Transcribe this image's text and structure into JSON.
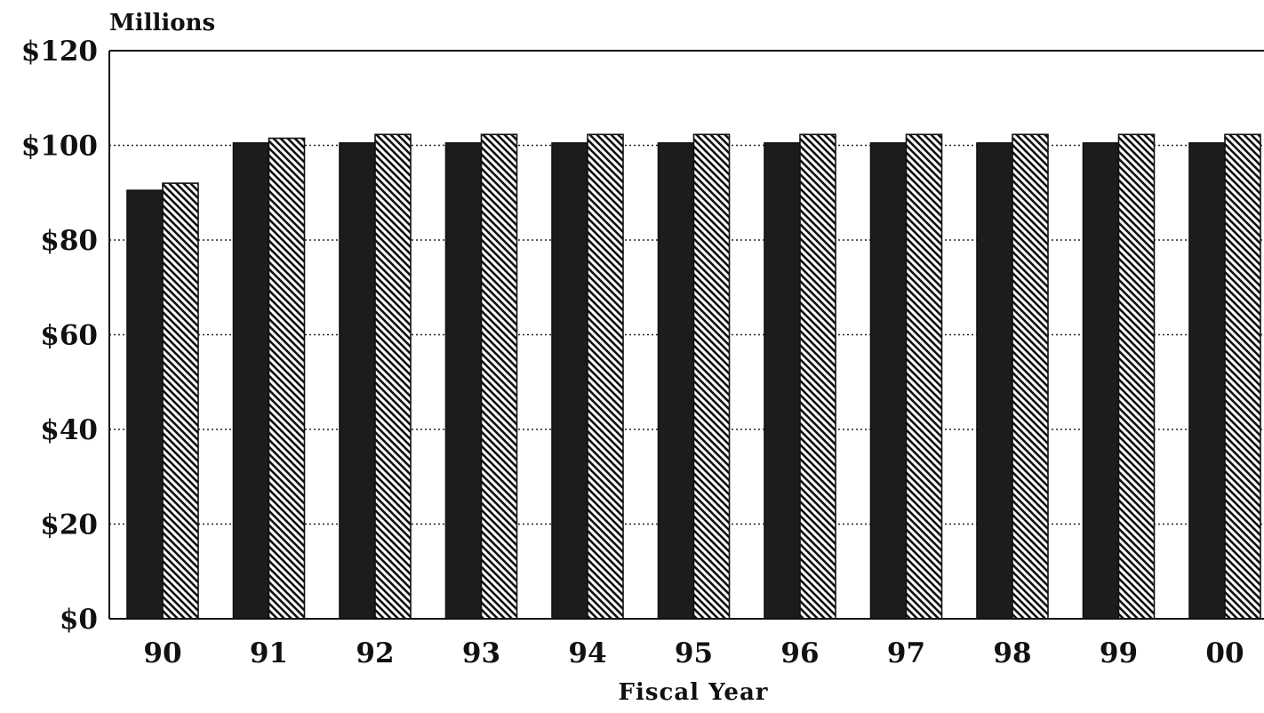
{
  "chart_data": {
    "type": "bar",
    "title": "",
    "unit_label": "Millions",
    "xlabel": "Fiscal Year",
    "ylabel": "",
    "categories": [
      "90",
      "91",
      "92",
      "93",
      "94",
      "95",
      "96",
      "97",
      "98",
      "99",
      "00"
    ],
    "series": [
      {
        "values": [
          90.5,
          100.5,
          100.5,
          100.5,
          100.5,
          100.5,
          100.5,
          100.5,
          100.5,
          100.5,
          100.5
        ],
        "fill": "solid",
        "color": "#1c1c1c"
      },
      {
        "values": [
          92.0,
          101.5,
          102.3,
          102.3,
          102.3,
          102.3,
          102.3,
          102.3,
          102.3,
          102.3,
          102.3
        ],
        "fill": "diagonal-hatch",
        "color": "#111111"
      }
    ],
    "ylim": [
      0,
      120
    ],
    "yticks": [
      0,
      20,
      40,
      60,
      80,
      100,
      120
    ],
    "ytick_labels": [
      "$0",
      "$20",
      "$40",
      "$60",
      "$80",
      "$100",
      "$120"
    ],
    "grid": "horizontal-dotted",
    "legend": "none"
  }
}
